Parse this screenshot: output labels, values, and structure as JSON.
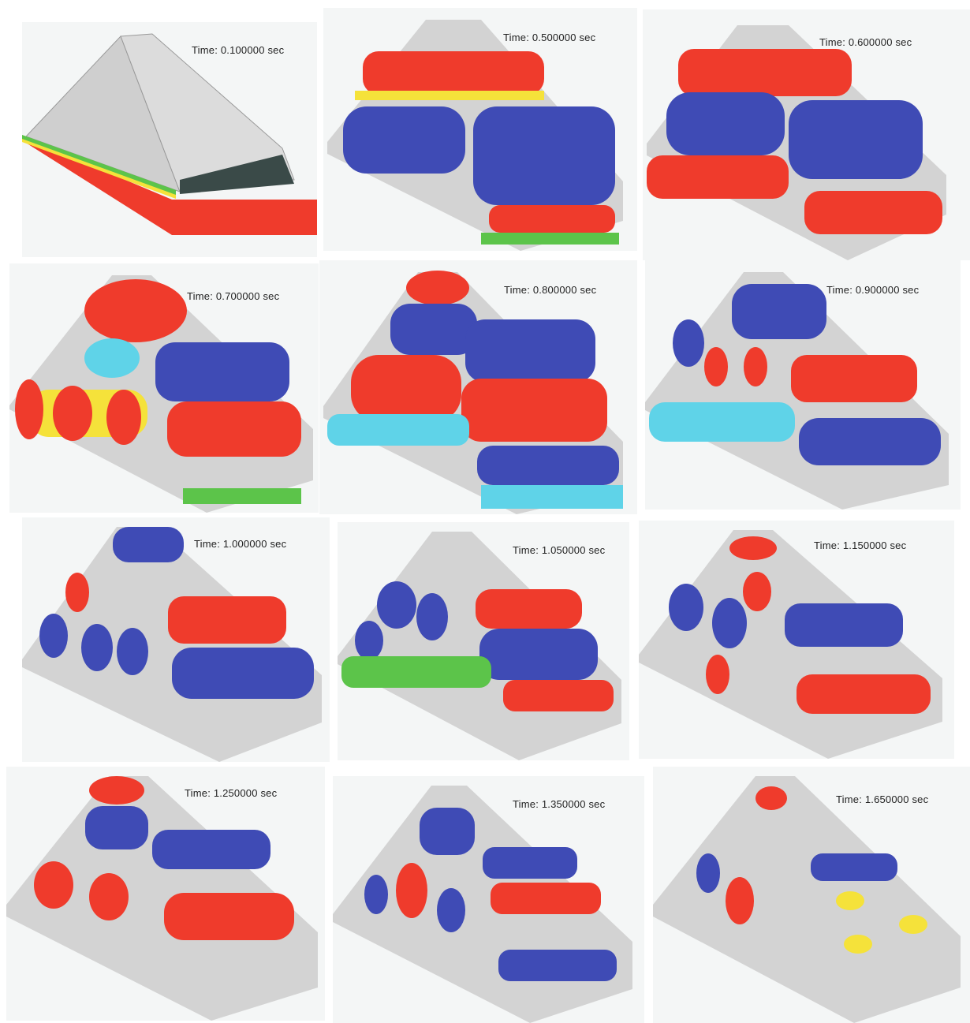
{
  "colors": {
    "background": "#f4f6f6",
    "red": "#ef3b2c",
    "yellow": "#f5e23a",
    "green": "#5cc44a",
    "cyan": "#5fd3e8",
    "blue": "#3f4bb5",
    "gray": "#d3d3d3",
    "dark": "#3a4a48"
  },
  "panels": [
    {
      "time_label": "Time: 0.100000 sec",
      "scheme": "base"
    },
    {
      "time_label": "Time: 0.500000 sec",
      "scheme": "bands"
    },
    {
      "time_label": "Time: 0.600000 sec",
      "scheme": "bands"
    },
    {
      "time_label": "Time: 0.700000 sec",
      "scheme": "blobs-red"
    },
    {
      "time_label": "Time: 0.800000 sec",
      "scheme": "blobs-red"
    },
    {
      "time_label": "Time: 0.900000 sec",
      "scheme": "blobs-blue"
    },
    {
      "time_label": "Time: 1.000000 sec",
      "scheme": "blobs-blue"
    },
    {
      "time_label": "Time: 1.050000 sec",
      "scheme": "blobs-blue"
    },
    {
      "time_label": "Time: 1.150000 sec",
      "scheme": "mixed"
    },
    {
      "time_label": "Time: 1.250000 sec",
      "scheme": "mixed"
    },
    {
      "time_label": "Time: 1.350000 sec",
      "scheme": "mixed"
    },
    {
      "time_label": "Time: 1.650000 sec",
      "scheme": "sparse"
    }
  ]
}
